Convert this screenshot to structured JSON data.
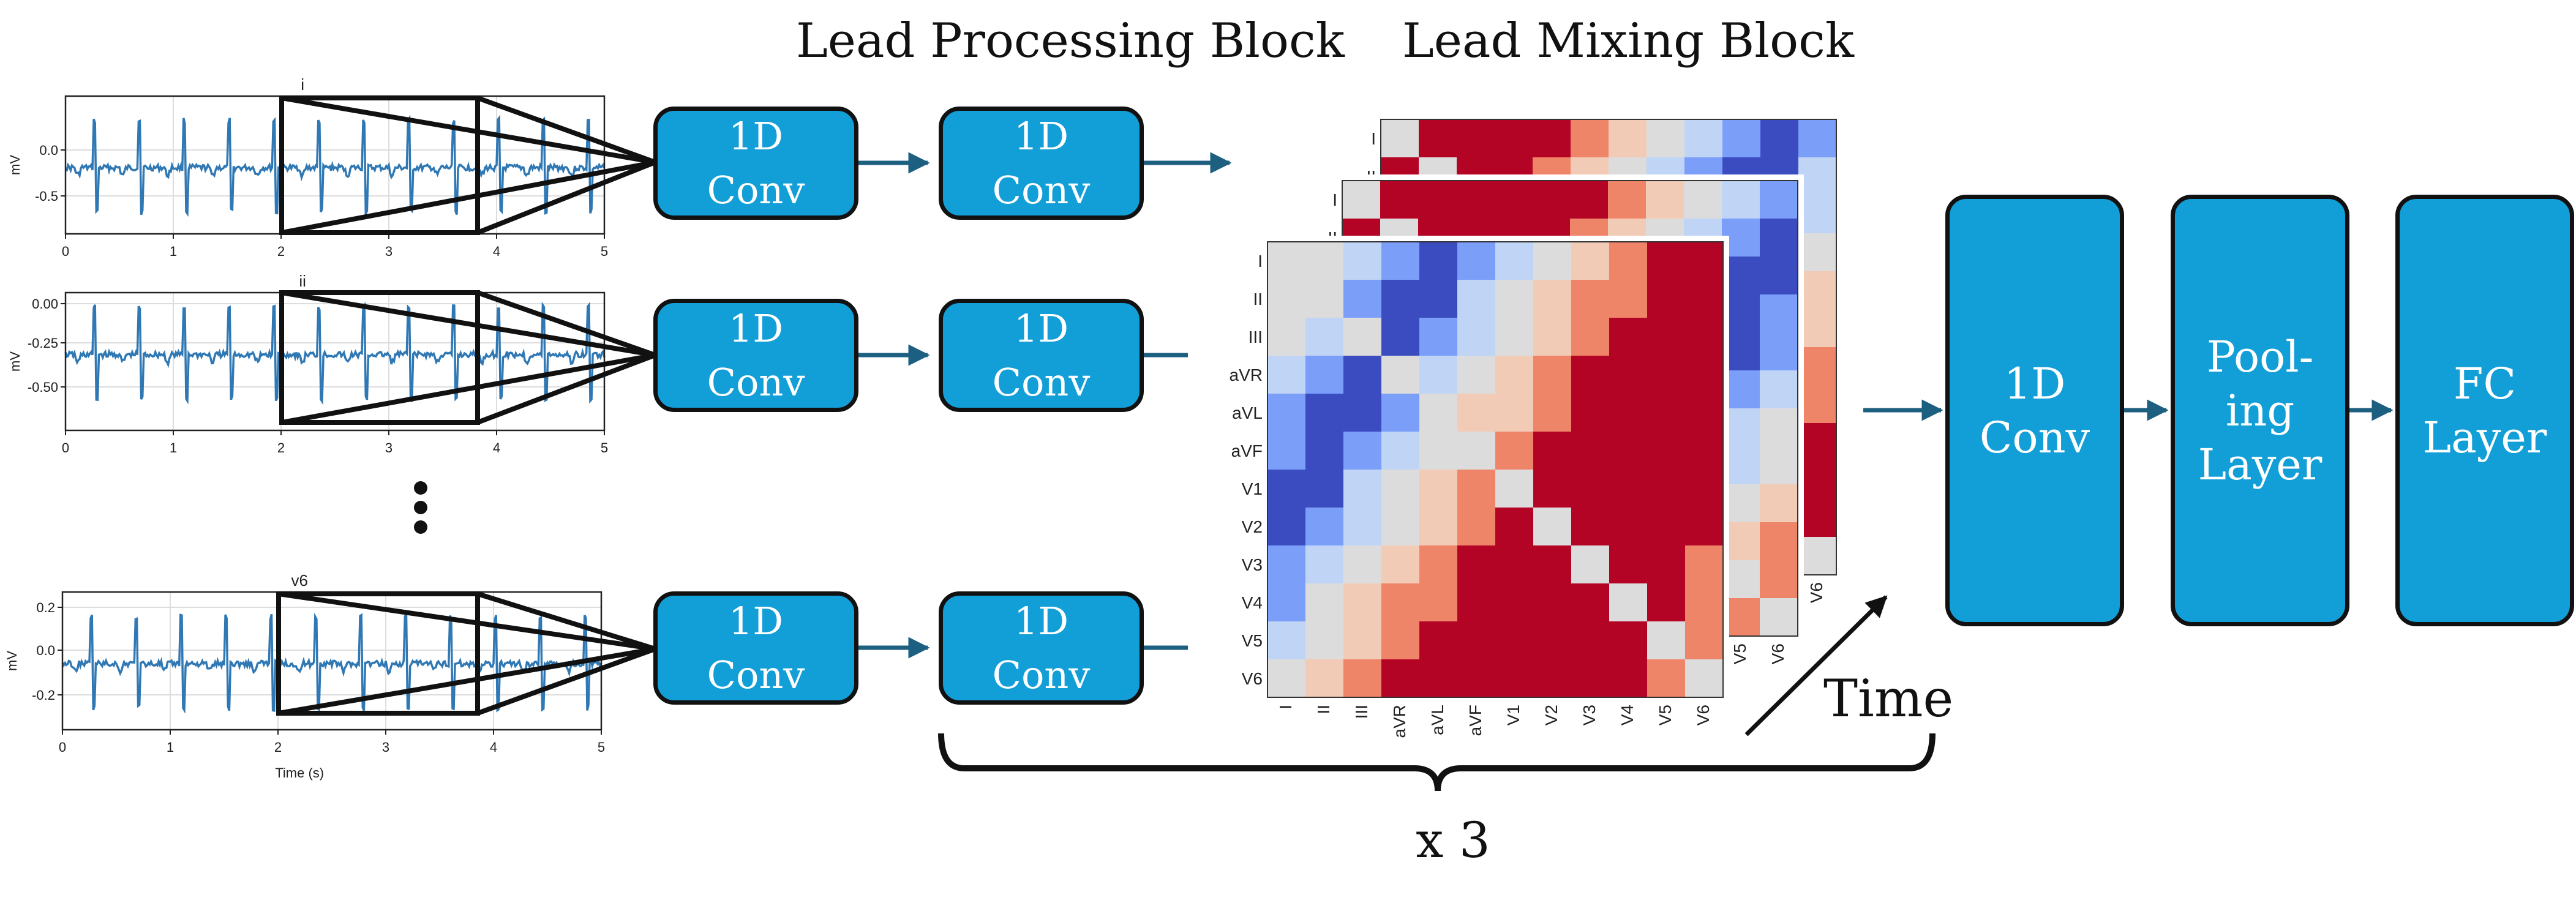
{
  "headers": {
    "lead_processing": "Lead Processing Block",
    "lead_mixing": "Lead Mixing Block"
  },
  "plots": [
    {
      "title": "i",
      "ylabel": "mV",
      "yticks": [
        "0.0",
        "-0.5"
      ],
      "xticks": [
        "0",
        "1",
        "2",
        "3",
        "4",
        "5"
      ],
      "xlabel": ""
    },
    {
      "title": "ii",
      "ylabel": "mV",
      "yticks": [
        "0.00",
        "-0.25",
        "-0.50"
      ],
      "xticks": [
        "0",
        "1",
        "2",
        "3",
        "4",
        "5"
      ],
      "xlabel": ""
    },
    {
      "title": "v6",
      "ylabel": "mV",
      "yticks": [
        "0.2",
        "0.0",
        "-0.2"
      ],
      "xticks": [
        "0",
        "1",
        "2",
        "3",
        "4",
        "5"
      ],
      "xlabel": "Time (s)"
    }
  ],
  "conv_label": "1D\nConv",
  "heatmap": {
    "row_labels": [
      "I",
      "II",
      "III",
      "aVR",
      "aVL",
      "aVF",
      "V1",
      "V2",
      "V3",
      "V4",
      "V5",
      "V6"
    ],
    "col_labels": [
      "I",
      "II",
      "III",
      "aVR",
      "aVL",
      "aVF",
      "V1",
      "V2",
      "V3",
      "V4",
      "V5",
      "V6"
    ],
    "colormap": [
      "#3b4cc0",
      "#7b9ff9",
      "#c0d4f5",
      "#dddcdc",
      "#f2cbb7",
      "#ee8468",
      "#b40426"
    ]
  },
  "time_label": "Time",
  "repeat_label": "x 3",
  "final_blocks": [
    "1D\nConv",
    "Pool-\ning\nLayer",
    "FC\nLayer"
  ],
  "colors": {
    "block_fill": "#129ed6",
    "arrow": "#1d5f80",
    "signal": "#2f78b4"
  }
}
